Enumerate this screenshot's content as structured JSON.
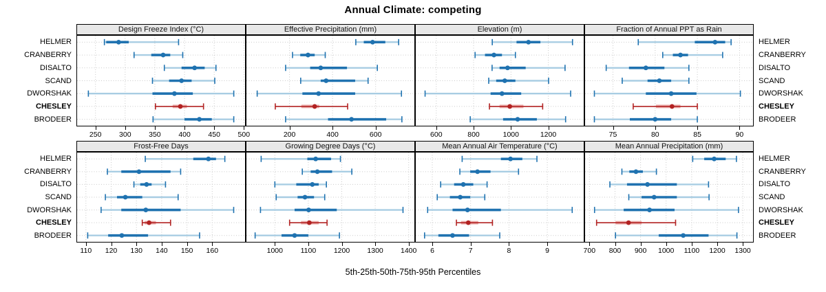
{
  "chart_data": {
    "type": "scatter",
    "variant": "percentile-interval-dotplot (trellis, 2x4 panels)",
    "title": "Annual Climate: competing",
    "xlabel": "5th-25th-50th-75th-95th Percentiles",
    "percentiles": [
      5,
      25,
      50,
      75,
      95
    ],
    "grid": "dotted",
    "legend": "none",
    "sites": [
      "HELMER",
      "CRANBERRY",
      "DISALTO",
      "SCAND",
      "DWORSHAK",
      "CHESLEY",
      "BRODEER"
    ],
    "highlighted_site": "CHESLEY",
    "colors": {
      "normal": "#1F72B0",
      "normal_light": "#A8CDE3",
      "highlight": "#B22222",
      "highlight_light": "#EBABA9"
    },
    "panels": [
      {
        "title": "Design Freeze Index (°C)",
        "xlim": [
          219,
          502
        ],
        "ticks": [
          250,
          300,
          350,
          400,
          450,
          500
        ],
        "values": {
          "HELMER": [
            265,
            268,
            289,
            306,
            390
          ],
          "CRANBERRY": [
            315,
            344,
            364,
            376,
            397
          ],
          "DISALTO": [
            366,
            395,
            417,
            434,
            453
          ],
          "SCAND": [
            346,
            374,
            395,
            412,
            451
          ],
          "DWORSHAK": [
            238,
            346,
            383,
            414,
            483
          ],
          "CHESLEY": [
            351,
            380,
            393,
            404,
            432
          ],
          "BRODEER": [
            347,
            400,
            425,
            446,
            483
          ]
        }
      },
      {
        "title": "Effective Precipitation (mm)",
        "xlim": [
          0,
          780
        ],
        "ticks": [
          200,
          400,
          600
        ],
        "values": {
          "HELMER": [
            508,
            545,
            586,
            645,
            707
          ],
          "CRANBERRY": [
            214,
            250,
            286,
            317,
            366
          ],
          "DISALTO": [
            182,
            296,
            345,
            467,
            608
          ],
          "SCAND": [
            252,
            345,
            370,
            505,
            565
          ],
          "DWORSHAK": [
            50,
            260,
            335,
            505,
            720
          ],
          "CHESLEY": [
            134,
            255,
            317,
            338,
            470
          ],
          "BRODEER": [
            182,
            379,
            488,
            649,
            722
          ]
        }
      },
      {
        "title": "Elevation (m)",
        "xlim": [
          490,
          1390
        ],
        "ticks": [
          600,
          800,
          1000,
          1200
        ],
        "values": {
          "HELMER": [
            900,
            1030,
            1094,
            1158,
            1330
          ],
          "CRANBERRY": [
            808,
            861,
            909,
            952,
            1024
          ],
          "DISALTO": [
            899,
            939,
            982,
            1079,
            1290
          ],
          "SCAND": [
            881,
            921,
            967,
            1024,
            1202
          ],
          "DWORSHAK": [
            540,
            891,
            952,
            1055,
            1320
          ],
          "CHESLEY": [
            885,
            939,
            994,
            1067,
            1170
          ],
          "BRODEER": [
            782,
            958,
            1036,
            1139,
            1293
          ]
        }
      },
      {
        "title": "Fraction of Annual PPT as Rain",
        "xlim": [
          71.7,
          91.6
        ],
        "ticks": [
          75,
          80,
          85,
          90
        ],
        "values": {
          "HELMER": [
            78.0,
            84.7,
            87.1,
            88.3,
            89.0
          ],
          "CRANBERRY": [
            80.9,
            82.1,
            83.0,
            83.9,
            88.0
          ],
          "DISALTO": [
            74.2,
            76.9,
            78.9,
            81.1,
            84.0
          ],
          "SCAND": [
            76.1,
            79.1,
            80.5,
            81.9,
            84.0
          ],
          "DWORSHAK": [
            72.8,
            78.9,
            81.9,
            84.9,
            90.1
          ],
          "CHESLEY": [
            77.4,
            80.1,
            82.0,
            83.0,
            85.0
          ],
          "BRODEER": [
            72.8,
            77.0,
            80.0,
            81.9,
            85.0
          ]
        }
      },
      {
        "title": "Frost-Free Days",
        "xlim": [
          106.5,
          173
        ],
        "ticks": [
          110,
          120,
          130,
          140,
          150,
          160
        ],
        "values": {
          "HELMER": [
            133.5,
            152.5,
            158.5,
            161.5,
            165
          ],
          "CRANBERRY": [
            118.5,
            124,
            131,
            143.5,
            147.5
          ],
          "DISALTO": [
            129,
            131.5,
            134,
            136,
            141.5
          ],
          "SCAND": [
            117.7,
            122.3,
            125.6,
            132.3,
            146.5
          ],
          "DWORSHAK": [
            116,
            124,
            133.7,
            147.5,
            168.5
          ],
          "CHESLEY": [
            132.3,
            133.2,
            135,
            137.7,
            143.5
          ],
          "BRODEER": [
            110.7,
            118.8,
            124.2,
            134.6,
            155
          ]
        }
      },
      {
        "title": "Growing Degree Days (°C)",
        "xlim": [
          915,
          1417
        ],
        "ticks": [
          1000,
          1100,
          1200,
          1300,
          1400
        ],
        "values": {
          "HELMER": [
            959,
            1097,
            1122,
            1168,
            1196
          ],
          "CRANBERRY": [
            1082,
            1107,
            1127,
            1171,
            1230
          ],
          "DISALTO": [
            1000,
            1064,
            1112,
            1131,
            1154
          ],
          "SCAND": [
            1004,
            1068,
            1090,
            1117,
            1149
          ],
          "DWORSHAK": [
            957,
            1059,
            1101,
            1185,
            1383
          ],
          "CHESLEY": [
            1044,
            1078,
            1103,
            1131,
            1156
          ],
          "BRODEER": [
            941,
            1020,
            1059,
            1100,
            1193
          ]
        }
      },
      {
        "title": "Mean Annual Air Temperature (°C)",
        "xlim": [
          5.57,
          9.95
        ],
        "ticks": [
          6,
          7,
          8,
          9
        ],
        "values": {
          "HELMER": [
            6.78,
            7.79,
            8.04,
            8.35,
            8.73
          ],
          "CRANBERRY": [
            6.72,
            6.99,
            7.18,
            7.52,
            8.25
          ],
          "DISALTO": [
            6.22,
            6.57,
            6.81,
            7.07,
            7.43
          ],
          "SCAND": [
            6.13,
            6.46,
            6.73,
            6.99,
            7.37
          ],
          "DWORSHAK": [
            5.88,
            6.53,
            6.92,
            7.79,
            9.65
          ],
          "CHESLEY": [
            6.63,
            6.75,
            6.94,
            7.2,
            7.57
          ],
          "BRODEER": [
            5.8,
            6.16,
            6.53,
            6.96,
            7.76
          ]
        }
      },
      {
        "title": "Mean Annual Precipitation (mm)",
        "xlim": [
          683,
          1340
        ],
        "ticks": [
          700,
          800,
          900,
          1000,
          1100,
          1200,
          1300
        ],
        "values": {
          "HELMER": [
            1104,
            1149,
            1188,
            1233,
            1275
          ],
          "CRANBERRY": [
            827,
            856,
            882,
            909,
            962
          ],
          "DISALTO": [
            780,
            847,
            927,
            1042,
            1166
          ],
          "SCAND": [
            854,
            904,
            953,
            1042,
            1168
          ],
          "DWORSHAK": [
            720,
            834,
            935,
            1033,
            1283
          ],
          "CHESLEY": [
            728,
            802,
            853,
            904,
            1037
          ],
          "BRODEER": [
            802,
            971,
            1067,
            1166,
            1277
          ]
        }
      }
    ]
  }
}
